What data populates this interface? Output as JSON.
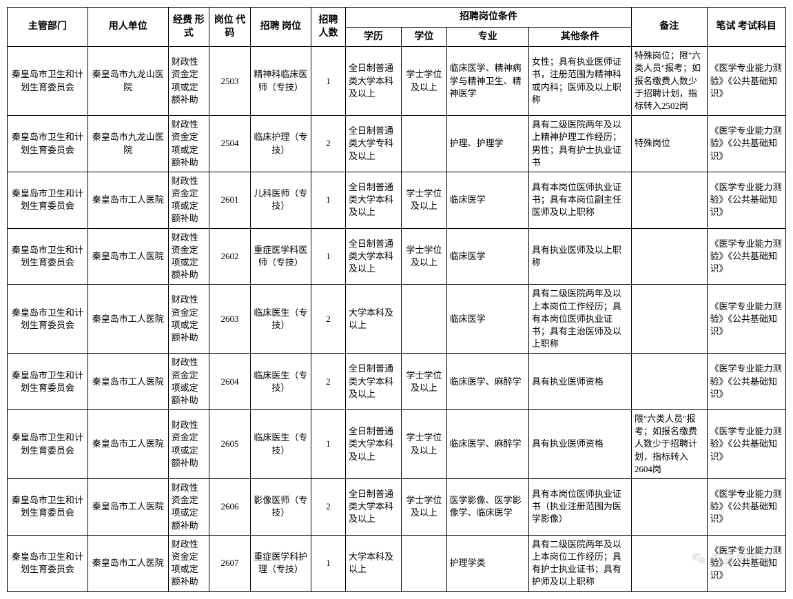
{
  "header": {
    "dept": "主管部门",
    "unit": "用人单位",
    "fund": "经费\n形式",
    "code": "岗位\n代码",
    "post": "招聘\n岗位",
    "num": "招聘\n人数",
    "cond_group": "招聘岗位条件",
    "edu": "学历",
    "degree": "学位",
    "major": "专业",
    "other": "其他条件",
    "remark": "备注",
    "exam": "笔试\n考试科目"
  },
  "rows": [
    {
      "dept": "秦皇岛市卫生和计划生育委员会",
      "unit": "秦皇岛市九龙山医院",
      "fund": "财政性资金定项或定额补助",
      "code": "2503",
      "post": "精神科临床医师（专技）",
      "num": "1",
      "edu": "全日制普通类大学本科及以上",
      "degree": "学士学位及以上",
      "major": "临床医学、精神病学与精神卫生、精神医学",
      "other": "女性；具有执业医师证书，注册范围为精神科或内科；医师及以上职称",
      "remark": "特殊岗位；限\"六类人员\"报考；如报名缴费人数少于招聘计划，指标转入2502岗",
      "exam": "《医学专业能力测验》《公共基础知识》"
    },
    {
      "dept": "秦皇岛市卫生和计划生育委员会",
      "unit": "秦皇岛市九龙山医院",
      "fund": "财政性资金定项或定额补助",
      "code": "2504",
      "post": "临床护理（专技）",
      "num": "2",
      "edu": "全日制普通类大学专科及以上",
      "degree": "",
      "major": "护理、护理学",
      "other": "具有二级医院两年及以上精神护理工作经历；男性；具有护士执业证书",
      "remark": "特殊岗位",
      "exam": "《医学专业能力测验》《公共基础知识》"
    },
    {
      "dept": "秦皇岛市卫生和计划生育委员会",
      "unit": "秦皇岛市工人医院",
      "fund": "财政性资金定项或定额补助",
      "code": "2601",
      "post": "儿科医师（专技）",
      "num": "1",
      "edu": "全日制普通类大学本科及以上",
      "degree": "学士学位及以上",
      "major": "临床医学",
      "other": "具有本岗位医师执业证书；具有本岗位副主任医师及以上职称",
      "remark": "",
      "exam": "《医学专业能力测验》《公共基础知识》"
    },
    {
      "dept": "秦皇岛市卫生和计划生育委员会",
      "unit": "秦皇岛市工人医院",
      "fund": "财政性资金定项或定额补助",
      "code": "2602",
      "post": "重症医学科医师（专技）",
      "num": "1",
      "edu": "全日制普通类大学本科及以上",
      "degree": "学士学位及以上",
      "major": "临床医学",
      "other": "具有执业医师及以上职称",
      "remark": "",
      "exam": "《医学专业能力测验》《公共基础知识》"
    },
    {
      "dept": "秦皇岛市卫生和计划生育委员会",
      "unit": "秦皇岛市工人医院",
      "fund": "财政性资金定项或定额补助",
      "code": "2603",
      "post": "临床医生（专技）",
      "num": "2",
      "edu": "大学本科及以上",
      "degree": "",
      "major": "临床医学",
      "other": "具有二级医院两年及以上本岗位工作经历；具有本岗位医师执业证书；具有主治医师及以上职称",
      "remark": "",
      "exam": "《医学专业能力测验》《公共基础知识》"
    },
    {
      "dept": "秦皇岛市卫生和计划生育委员会",
      "unit": "秦皇岛市工人医院",
      "fund": "财政性资金定项或定额补助",
      "code": "2604",
      "post": "临床医生（专技）",
      "num": "2",
      "edu": "全日制普通类大学本科及以上",
      "degree": "学士学位及以上",
      "major": "临床医学、麻醉学",
      "other": "具有执业医师资格",
      "remark": "",
      "exam": "《医学专业能力测验》《公共基础知识》"
    },
    {
      "dept": "秦皇岛市卫生和计划生育委员会",
      "unit": "秦皇岛市工人医院",
      "fund": "财政性资金定项或定额补助",
      "code": "2605",
      "post": "临床医生（专技）",
      "num": "1",
      "edu": "全日制普通类大学本科及以上",
      "degree": "学士学位及以上",
      "major": "临床医学、麻醉学",
      "other": "具有执业医师资格",
      "remark": "限\"六类人员\"报考；如报名缴费人数少于招聘计划，指标转入2604岗",
      "exam": "《医学专业能力测验》《公共基础知识》"
    },
    {
      "dept": "秦皇岛市卫生和计划生育委员会",
      "unit": "秦皇岛市工人医院",
      "fund": "财政性资金定项或定额补助",
      "code": "2606",
      "post": "影像医师（专技）",
      "num": "2",
      "edu": "全日制普通类大学本科及以上",
      "degree": "学士学位及以上",
      "major": "医学影像、医学影像学、临床医学",
      "other": "具有本岗位医师执业证书（执业注册范围为医学影像）",
      "remark": "",
      "exam": "《医学专业能力测验》《公共基础知识》"
    },
    {
      "dept": "秦皇岛市卫生和计划生育委员会",
      "unit": "秦皇岛市工人医院",
      "fund": "财政性资金定项或定额补助",
      "code": "2607",
      "post": "重症医学科护理（专技）",
      "num": "1",
      "edu": "大学本科及以上",
      "degree": "",
      "major": "护理学类",
      "other": "具有二级医院两年及以上本岗位工作经历；具有护士执业证书；具有护师及以上职称",
      "remark": "",
      "exam": "《医学专业能力测验》《公共基础知识》"
    }
  ],
  "watermark": "秦皇岛晚报"
}
